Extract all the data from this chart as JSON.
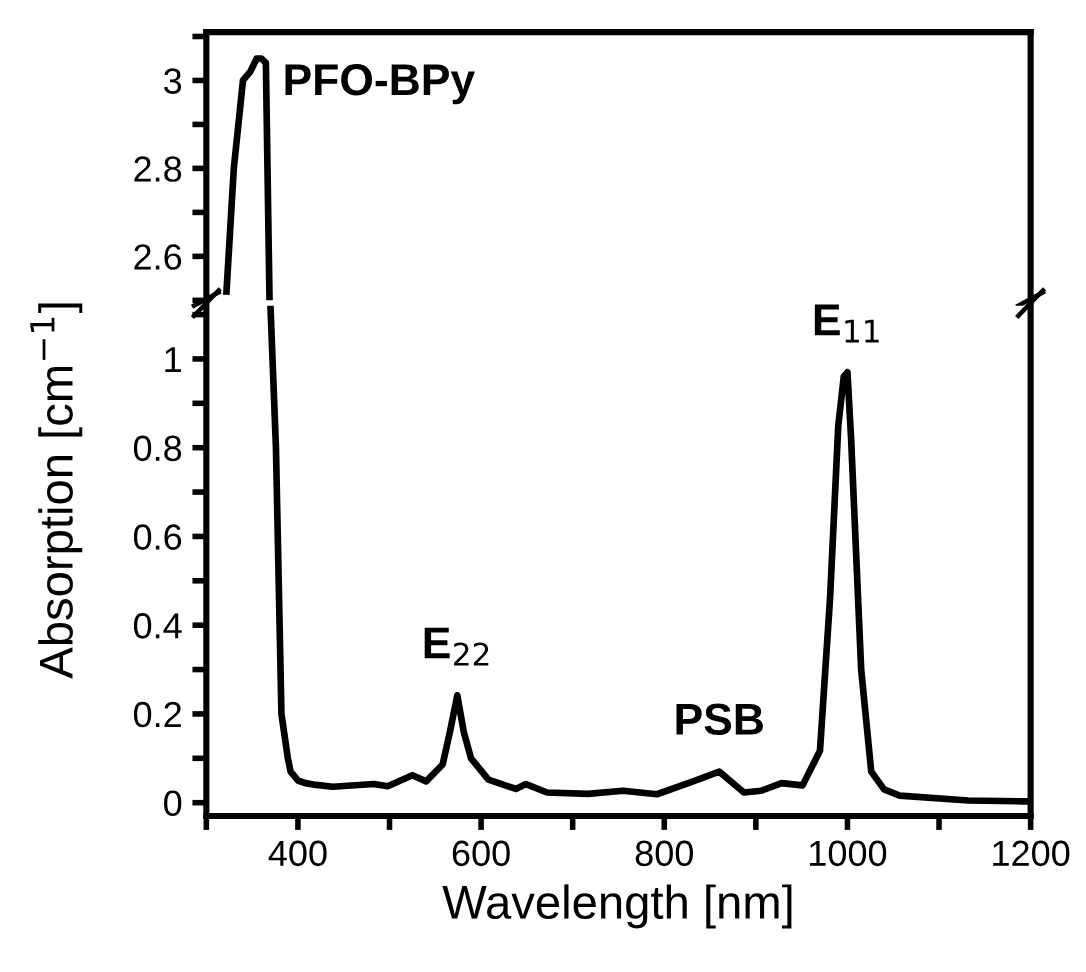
{
  "chart_data": [
    {
      "type": "line",
      "xlim": [
        300,
        1200
      ],
      "ylim": [
        2.5,
        3.11
      ],
      "yticks": [
        {
          "value": 2.5,
          "label": null
        },
        2.6,
        {
          "value": 2.7,
          "label": null
        },
        2.8,
        {
          "value": 2.9,
          "label": null
        },
        3,
        {
          "value": 3.1,
          "label": null
        }
      ],
      "tick_labels": "y",
      "series": [
        {
          "color": "#000000",
          "x": [
            322,
            330,
            340,
            348,
            355,
            360,
            365,
            369
          ],
          "values": [
            2.52,
            2.8,
            3.0,
            3.02,
            3.05,
            3.05,
            3.04,
            2.5
          ]
        }
      ],
      "annotations": [
        {
          "text": "PFO-BPy",
          "x": 365,
          "y": 3.04
        }
      ],
      "grid": false,
      "legend": false
    },
    {
      "type": "line",
      "xlim": [
        300,
        1200
      ],
      "ylim": [
        -0.03,
        1.12
      ],
      "xticks": [
        {
          "value": 300,
          "label": null
        },
        400,
        {
          "value": 500,
          "label": null
        },
        600,
        {
          "value": 700,
          "label": null
        },
        800,
        {
          "value": 900,
          "label": null
        },
        1000,
        {
          "value": 1100,
          "label": null
        },
        1200
      ],
      "yticks": [
        0,
        {
          "value": 0.1,
          "label": null
        },
        0.2,
        {
          "value": 0.3,
          "label": null
        },
        0.4,
        {
          "value": 0.5,
          "label": null
        },
        0.6,
        {
          "value": 0.7,
          "label": null
        },
        0.8,
        {
          "value": 0.9,
          "label": null
        },
        1,
        {
          "value": 1.1,
          "label": null
        }
      ],
      "xlabel": "Wavelength [nm]",
      "ylabel": "Absorption [cm$^{−1}$]",
      "series": [
        {
          "color": "#000000",
          "x": [
            370,
            376,
            382,
            389,
            392,
            400,
            408,
            420,
            438,
            483,
            498,
            525,
            540,
            558,
            566,
            574,
            581,
            589,
            608,
            638,
            649,
            672,
            717,
            755,
            792,
            830,
            860,
            887,
            906,
            928,
            951,
            970,
            981,
            990,
            996,
            1000,
            1004,
            1015,
            1026,
            1040,
            1057,
            1132,
            1192,
            1200
          ],
          "values": [
            1.12,
            0.8,
            0.2,
            0.1,
            0.07,
            0.05,
            0.044,
            0.04,
            0.036,
            0.042,
            0.037,
            0.062,
            0.048,
            0.086,
            0.16,
            0.242,
            0.16,
            0.1,
            0.052,
            0.031,
            0.042,
            0.023,
            0.02,
            0.027,
            0.019,
            0.047,
            0.07,
            0.023,
            0.027,
            0.044,
            0.039,
            0.117,
            0.46,
            0.85,
            0.96,
            0.97,
            0.82,
            0.3,
            0.07,
            0.03,
            0.016,
            0.005,
            0.003,
            0.003
          ]
        }
      ],
      "annotations": [
        {
          "text": "E$_{22}$",
          "x": 574,
          "y": 0.242
        },
        {
          "text": "PSB",
          "x": 860,
          "y": 0.07
        },
        {
          "text": "E$_{11}$",
          "x": 1000,
          "y": 0.97
        }
      ],
      "grid": false,
      "legend": false
    }
  ]
}
